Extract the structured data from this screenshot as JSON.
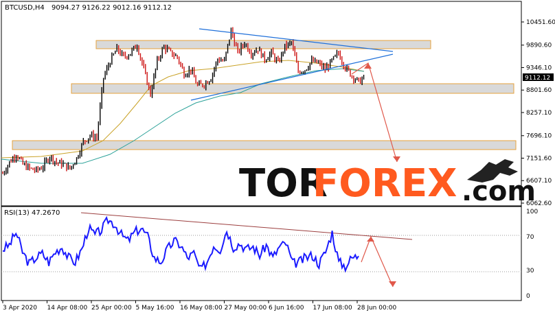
{
  "header": {
    "symbol_line": "BTCUSD,H4",
    "ohlc": "9094.27 9126.22 9012.16 9112.12"
  },
  "price_label": "9112.12",
  "rsi_header": "RSI(13) 47.2670",
  "watermark": {
    "tor": "TOR",
    "forex": "FOREX",
    "com": ".com"
  },
  "colors": {
    "tor": "#111111",
    "forex": "#ff5a1f",
    "candle_up": "#000000",
    "candle_down": "#cc1111",
    "ma_fast": "#c9a227",
    "ma_slow": "#2aa198",
    "trend": "#1e6fd9",
    "zone_edge": "#e6a23c",
    "forecast": "#e0584a",
    "rsi_line": "#1a1aff",
    "rsi_trend": "#9b3d3d"
  },
  "chart_data": [
    {
      "type": "line",
      "title": "BTCUSD,H4",
      "y_ticks": [
        "10451.60",
        "9890.60",
        "9346.10",
        "8801.60",
        "8257.10",
        "7696.10",
        "7151.60",
        "6607.10",
        "6062.60"
      ],
      "ylim": [
        6062.6,
        10451.6
      ],
      "x_ticks": [
        "3 Apr 2020",
        "14 Apr 08:00",
        "25 Apr 00:00",
        "5 May 16:00",
        "16 May 08:00",
        "27 May 00:00",
        "6 Jun 16:00",
        "17 Jun 08:00",
        "28 Jun 00:00"
      ],
      "series": [
        {
          "values": [
            6780,
            7050,
            7250,
            7000,
            6900,
            6850,
            6950,
            7200,
            7050,
            7000,
            6900,
            7150,
            7550,
            7700,
            7650,
            9100,
            9500,
            9800,
            9600,
            9700,
            9900,
            9300,
            8700,
            9500,
            9850,
            9700,
            9600,
            9200,
            9300,
            8900,
            8950,
            9100,
            9550,
            9500,
            10250,
            9700,
            9950,
            9700,
            9800,
            9550,
            9700,
            9450,
            9850,
            9950,
            9250,
            9300,
            9500,
            9450,
            9300,
            9500,
            9700,
            9350,
            9150,
            9000,
            9120
          ]
        }
      ],
      "horizontal_zones": [
        {
          "low": 9820,
          "high": 9960,
          "from": "25 Apr 00:00",
          "to": "28 Jun 00:00"
        },
        {
          "low": 8750,
          "high": 8900,
          "from": "14 Apr 08:00",
          "to": "28 Jun 00:00"
        },
        {
          "low": 7470,
          "high": 7600,
          "from": "3 Apr 2020",
          "to": "28 Jun 00:00"
        }
      ],
      "grid": false
    },
    {
      "type": "line",
      "title": "RSI(13) 47.2670",
      "y_ticks": [
        "100",
        "70",
        "30",
        "0"
      ],
      "ylim": [
        0,
        100
      ],
      "series": [
        {
          "values": [
            55,
            60,
            75,
            52,
            38,
            45,
            50,
            40,
            52,
            58,
            45,
            40,
            55,
            80,
            72,
            78,
            90,
            85,
            72,
            65,
            75,
            80,
            70,
            45,
            40,
            55,
            65,
            60,
            45,
            50,
            30,
            40,
            60,
            55,
            78,
            58,
            62,
            55,
            58,
            48,
            60,
            45,
            58,
            62,
            38,
            40,
            45,
            48,
            38,
            52,
            75,
            40,
            35,
            45,
            47
          ]
        }
      ],
      "levels": [
        70,
        30
      ]
    }
  ]
}
